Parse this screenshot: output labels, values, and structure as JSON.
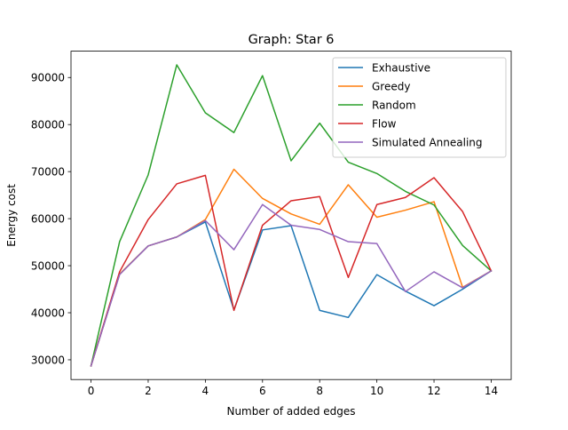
{
  "chart_data": {
    "type": "line",
    "title": "Graph: Star 6",
    "xlabel": "Number of added edges",
    "ylabel": "Energy cost",
    "x": [
      0,
      1,
      2,
      3,
      4,
      5,
      6,
      7,
      8,
      9,
      10,
      11,
      12,
      13,
      14
    ],
    "xlim": [
      -0.7,
      14.7
    ],
    "ylim": [
      25800,
      95600
    ],
    "xticks": [
      0,
      2,
      4,
      6,
      8,
      10,
      12,
      14
    ],
    "yticks": [
      30000,
      40000,
      50000,
      60000,
      70000,
      80000,
      90000
    ],
    "xtick_labels": [
      "0",
      "2",
      "4",
      "6",
      "8",
      "10",
      "12",
      "14"
    ],
    "ytick_labels": [
      "30000",
      "40000",
      "50000",
      "60000",
      "70000",
      "80000",
      "90000"
    ],
    "grid": false,
    "legend_position": "top-right",
    "series": [
      {
        "name": "Exhaustive",
        "color": "#1f77b4",
        "values": [
          28700,
          48200,
          54200,
          56100,
          59300,
          40600,
          57600,
          58500,
          40500,
          39000,
          48100,
          44600,
          41500,
          45000,
          48900
        ]
      },
      {
        "name": "Greedy",
        "color": "#ff7f0e",
        "values": [
          28700,
          48200,
          54200,
          56100,
          59800,
          70500,
          64300,
          61000,
          58800,
          67200,
          60300,
          61800,
          63600,
          45400,
          48900
        ]
      },
      {
        "name": "Random",
        "color": "#2ca02c",
        "values": [
          28700,
          55100,
          69300,
          92700,
          82500,
          78300,
          90400,
          72300,
          80300,
          72000,
          69600,
          65800,
          62900,
          54300,
          48900
        ]
      },
      {
        "name": "Flow",
        "color": "#d62728",
        "values": [
          28700,
          48700,
          59800,
          67400,
          69200,
          40500,
          58600,
          63800,
          64700,
          47500,
          63000,
          64500,
          68700,
          61500,
          48900
        ]
      },
      {
        "name": "Simulated Annealing",
        "color": "#9467bd",
        "values": [
          28700,
          48100,
          54200,
          56100,
          59600,
          53400,
          63000,
          58600,
          57700,
          55100,
          54700,
          44500,
          48700,
          45300,
          48900
        ]
      }
    ]
  }
}
